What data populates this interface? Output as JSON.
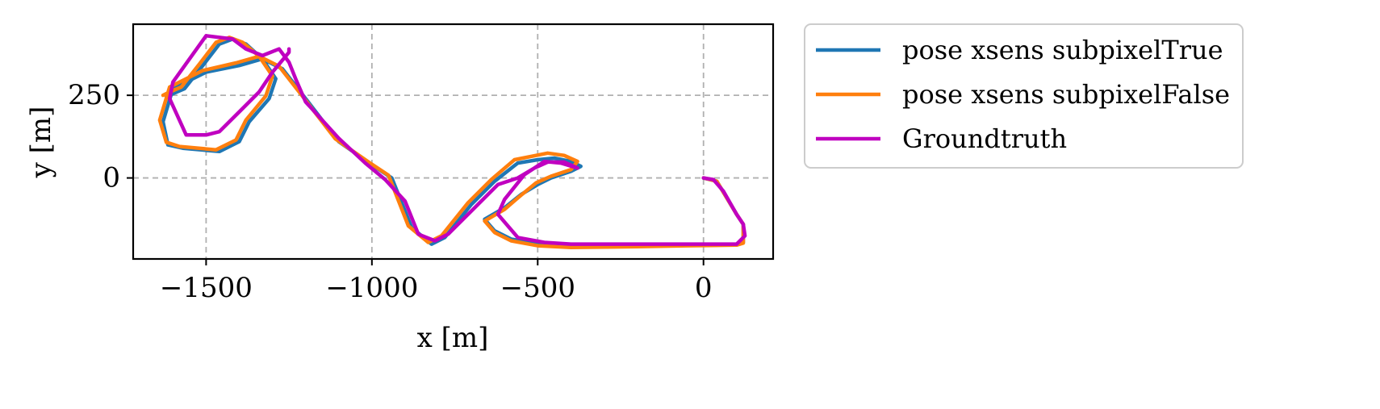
{
  "chart_data": {
    "type": "line",
    "title": "",
    "xlabel": "x [m]",
    "ylabel": "y [m]",
    "xlim": [
      -1720,
      210
    ],
    "ylim": [
      -245,
      465
    ],
    "x_ticks": [
      -1500,
      -1000,
      -500,
      0
    ],
    "x_tick_labels": [
      "−1500",
      "−1000",
      "−500",
      "0"
    ],
    "y_ticks": [
      0,
      250
    ],
    "y_tick_labels": [
      "0",
      "250"
    ],
    "grid": true,
    "legend_position": "outside-right",
    "series": [
      {
        "name": "pose xsens subpixelTrue",
        "color": "#1f77b4",
        "x": [
          0,
          40,
          100,
          120,
          120,
          100,
          -50,
          -200,
          -400,
          -500,
          -580,
          -630,
          -660,
          -600,
          -550,
          -500,
          -460,
          -400,
          -370,
          -400,
          -450,
          -500,
          -560,
          -630,
          -700,
          -780,
          -820,
          -880,
          -940,
          -1000,
          -1100,
          -1200,
          -1270,
          -1330,
          -1400,
          -1500,
          -1600,
          -1630,
          -1615,
          -1570,
          -1460,
          -1400,
          -1370,
          -1310,
          -1290,
          -1330,
          -1380,
          -1420,
          -1460,
          -1510,
          -1565,
          -1600,
          -1620
        ],
        "y": [
          0,
          -10,
          -110,
          -140,
          -195,
          -200,
          -202,
          -205,
          -205,
          -200,
          -185,
          -160,
          -125,
          -90,
          -50,
          -20,
          0,
          20,
          35,
          50,
          60,
          55,
          45,
          -10,
          -80,
          -180,
          -200,
          -150,
          0,
          40,
          110,
          240,
          330,
          360,
          340,
          320,
          270,
          170,
          100,
          90,
          80,
          110,
          170,
          240,
          300,
          360,
          405,
          420,
          405,
          340,
          270,
          255,
          245
        ]
      },
      {
        "name": "pose xsens subpixelFalse",
        "color": "#ff7f0e",
        "x": [
          0,
          40,
          100,
          120,
          120,
          100,
          -50,
          -200,
          -400,
          -500,
          -580,
          -630,
          -660,
          -600,
          -550,
          -505,
          -460,
          -400,
          -380,
          -420,
          -470,
          -505,
          -570,
          -640,
          -710,
          -790,
          -830,
          -890,
          -950,
          -1010,
          -1110,
          -1210,
          -1280,
          -1340,
          -1410,
          -1510,
          -1610,
          -1640,
          -1620,
          -1580,
          -1470,
          -1410,
          -1380,
          -1320,
          -1300,
          -1340,
          -1390,
          -1430,
          -1470,
          -1520,
          -1575,
          -1610,
          -1630
        ],
        "y": [
          0,
          -10,
          -110,
          -140,
          -197,
          -203,
          -205,
          -208,
          -210,
          -205,
          -190,
          -165,
          -130,
          -95,
          -52,
          -15,
          5,
          25,
          50,
          68,
          75,
          68,
          55,
          -5,
          -75,
          -175,
          -195,
          -145,
          8,
          48,
          118,
          248,
          338,
          368,
          348,
          325,
          275,
          175,
          108,
          95,
          85,
          115,
          175,
          248,
          308,
          368,
          410,
          425,
          410,
          345,
          275,
          260,
          250
        ]
      },
      {
        "name": "Groundtruth",
        "color": "#c000c0",
        "x": [
          0,
          30,
          60,
          100,
          120,
          125,
          100,
          -50,
          -200,
          -400,
          -480,
          -560,
          -620,
          -600,
          -540,
          -480,
          -430,
          -380,
          -420,
          -470,
          -510,
          -560,
          -620,
          -680,
          -770,
          -810,
          -860,
          -900,
          -960,
          -1020,
          -1100,
          -1200,
          -1230,
          -1250,
          -1280,
          -1330,
          -1380,
          -1420,
          -1500,
          -1600,
          -1610,
          -1560,
          -1500,
          -1460,
          -1400,
          -1340,
          -1300,
          -1250,
          -1250
        ],
        "y": [
          0,
          -5,
          -40,
          -110,
          -140,
          -175,
          -200,
          -200,
          -200,
          -200,
          -195,
          -180,
          -110,
          -65,
          10,
          50,
          45,
          30,
          48,
          48,
          30,
          0,
          -20,
          -80,
          -170,
          -190,
          -170,
          -70,
          -5,
          45,
          120,
          230,
          300,
          350,
          390,
          370,
          390,
          420,
          430,
          290,
          240,
          130,
          130,
          140,
          200,
          260,
          320,
          380,
          390
        ]
      }
    ]
  }
}
